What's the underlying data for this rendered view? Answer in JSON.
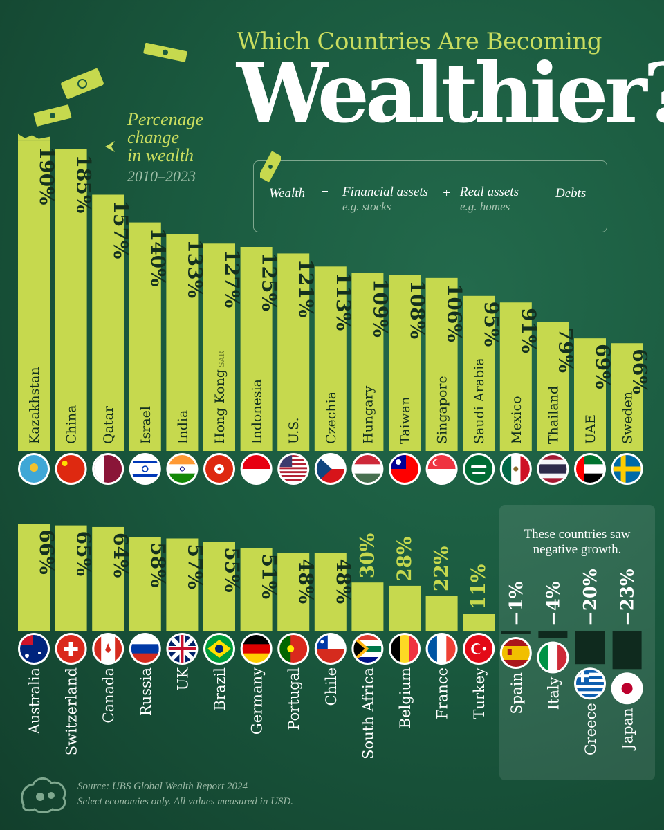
{
  "title": {
    "line1": "Which Countries Are Becoming",
    "line2": "Wealthier?"
  },
  "subtitle": {
    "line1": "Percenage",
    "line2": "change",
    "line3": "in wealth",
    "years": "2010–2023"
  },
  "formula": {
    "wealth": "Wealth",
    "equals": "=",
    "financial": "Financial assets",
    "financial_eg": "e.g. stocks",
    "plus": "+",
    "real": "Real assets",
    "real_eg": "e.g. homes",
    "minus": "–",
    "debts": "Debts"
  },
  "negative_note": {
    "line1": "These countries saw",
    "line2": "negative growth."
  },
  "source": {
    "line1": "Source: UBS Global Wealth Report 2024",
    "line2": "Select economies only. All values measured in USD."
  },
  "colors": {
    "bar": "#c6d94e",
    "bar_negative": "#0f2a1e",
    "background": "#1a5a3f",
    "accent_text": "#c9dd5f"
  },
  "chart_data": {
    "type": "bar",
    "title": "Which Countries Are Becoming Wealthier?",
    "ylabel": "Percenage change in wealth 2010–2023",
    "unit": "%",
    "categories": [
      "Kazakhstan",
      "China",
      "Qatar",
      "Israel",
      "India",
      "Hong Kong",
      "Indonesia",
      "U.S.",
      "Czechia",
      "Hungary",
      "Taiwan",
      "Singapore",
      "Saudi Arabia",
      "Mexico",
      "Thailand",
      "UAE",
      "Sweden",
      "Australia",
      "Switzerland",
      "Canada",
      "Russia",
      "UK",
      "Brazil",
      "Germany",
      "Portugal",
      "Chile",
      "South Africa",
      "Belgium",
      "France",
      "Turkey",
      "Spain",
      "Italy",
      "Greece",
      "Japan"
    ],
    "values": [
      190,
      185,
      157,
      140,
      133,
      127,
      125,
      121,
      113,
      109,
      108,
      106,
      95,
      91,
      79,
      69,
      66,
      66,
      65,
      64,
      58,
      57,
      55,
      51,
      48,
      48,
      30,
      28,
      22,
      11,
      -1,
      -4,
      -20,
      -23
    ],
    "labels": [
      "190%",
      "185%",
      "157%",
      "140%",
      "133%",
      "127%",
      "125%",
      "121%",
      "113%",
      "109%",
      "108%",
      "106%",
      "95%",
      "91%",
      "79%",
      "69%",
      "66%",
      "66%",
      "65%",
      "64%",
      "58%",
      "57%",
      "55%",
      "51%",
      "48%",
      "48%",
      "30%",
      "28%",
      "22%",
      "11%",
      "-1%",
      "-4%",
      "-20%",
      "-23%"
    ],
    "label_suffix": {
      "Hong Kong": "SAR"
    },
    "flags": [
      "kazakhstan-flag",
      "china-flag",
      "qatar-flag",
      "israel-flag",
      "india-flag",
      "hong-kong-flag",
      "indonesia-flag",
      "us-flag",
      "czechia-flag",
      "hungary-flag",
      "taiwan-flag",
      "singapore-flag",
      "saudi-arabia-flag",
      "mexico-flag",
      "thailand-flag",
      "uae-flag",
      "sweden-flag",
      "australia-flag",
      "switzerland-flag",
      "canada-flag",
      "russia-flag",
      "uk-flag",
      "brazil-flag",
      "germany-flag",
      "portugal-flag",
      "chile-flag",
      "south-africa-flag",
      "belgium-flag",
      "france-flag",
      "turkey-flag",
      "spain-flag",
      "italy-flag",
      "greece-flag",
      "japan-flag"
    ],
    "grid": false,
    "legend": "none"
  }
}
